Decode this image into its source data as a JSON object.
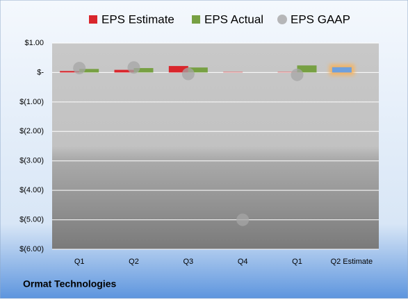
{
  "chart_data": {
    "type": "bar",
    "title": "Ormat Technologies",
    "categories": [
      "Q1",
      "Q2",
      "Q3",
      "Q4",
      "Q1",
      "Q2 Estimate"
    ],
    "series": [
      {
        "name": "EPS Estimate",
        "color": "#d9262c",
        "values": [
          0.05,
          0.09,
          0.22,
          0.03,
          0.03,
          0.18
        ],
        "colors": [
          "#d9262c",
          "#d9262c",
          "#d9262c",
          "#e08a8c",
          "#e08a8c",
          "#6fa0dc"
        ]
      },
      {
        "name": "EPS Actual",
        "color": "#77a043",
        "values": [
          0.12,
          0.15,
          0.17,
          null,
          0.24,
          null
        ]
      },
      {
        "name": "EPS GAAP",
        "color": "#a6a6a6",
        "marker": "circle",
        "values": [
          0.15,
          0.17,
          -0.05,
          -5.0,
          -0.08,
          null
        ]
      }
    ],
    "ylim": [
      -6,
      1
    ],
    "yticks": [
      {
        "value": 1,
        "label": "$1.00"
      },
      {
        "value": 0,
        "label": "$-"
      },
      {
        "value": -1,
        "label": "$(1.00)"
      },
      {
        "value": -2,
        "label": "$(2.00)"
      },
      {
        "value": -3,
        "label": "$(3.00)"
      },
      {
        "value": -4,
        "label": "$(4.00)"
      },
      {
        "value": -5,
        "label": "$(5.00)"
      },
      {
        "value": -6,
        "label": "$(6.00)"
      }
    ],
    "grid": true,
    "legend": "top"
  }
}
